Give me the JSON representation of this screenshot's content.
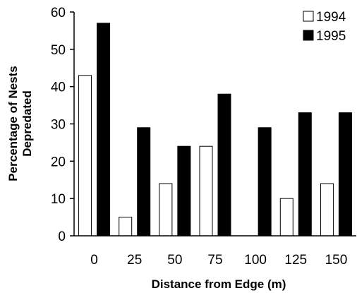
{
  "chart_data": {
    "type": "bar",
    "title": "",
    "xlabel": "Distance from Edge (m)",
    "ylabel_lines": [
      "Percentage of Nests",
      "Depredated"
    ],
    "categories": [
      "0",
      "25",
      "50",
      "75",
      "100",
      "125",
      "150"
    ],
    "series": [
      {
        "name": "1994",
        "values": [
          43,
          5,
          14,
          24,
          0,
          10,
          14
        ],
        "color": "#ffffff"
      },
      {
        "name": "1995",
        "values": [
          57,
          29,
          24,
          38,
          29,
          33,
          33
        ],
        "color": "#000000"
      }
    ],
    "ylim": [
      0,
      60
    ],
    "yticks": [
      0,
      10,
      20,
      30,
      40,
      50,
      60
    ],
    "grid": false,
    "legend_position": "top-right"
  }
}
